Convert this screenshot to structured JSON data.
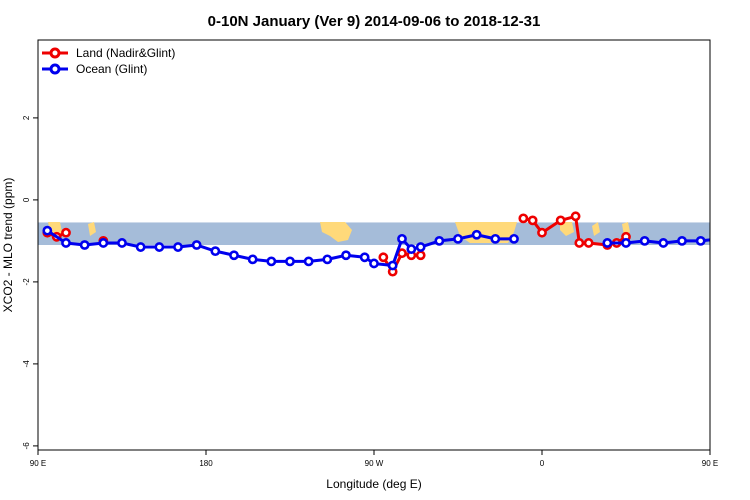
{
  "chart_data": {
    "type": "line",
    "title": "0-10N January (Ver 9)   2014-09-06 to 2018-12-31",
    "xlabel": "Longitude (deg E)",
    "ylabel": "XCO2 - MLO trend (ppm)",
    "xlim": [
      90,
      450
    ],
    "ylim": [
      -6.1,
      3.9
    ],
    "grid": false,
    "legend_position": "top-left",
    "x_ticks": [
      {
        "value": 90,
        "label": "90 E"
      },
      {
        "value": 180,
        "label": "180"
      },
      {
        "value": 270,
        "label": "90 W"
      },
      {
        "value": 360,
        "label": "0"
      },
      {
        "value": 450,
        "label": "90 E"
      },
      {
        "value": 540,
        "label": "180"
      }
    ],
    "y_ticks": [
      {
        "value": -6,
        "label": "-6"
      },
      {
        "value": -4,
        "label": "-4"
      },
      {
        "value": -2,
        "label": "-2"
      },
      {
        "value": 0,
        "label": "0"
      },
      {
        "value": 2,
        "label": "2"
      }
    ],
    "land_mask_band": {
      "y_range": [
        -1.1,
        -0.55
      ],
      "ocean_color": "#a5bcd9",
      "land_color": "#ffd97a"
    },
    "series": [
      {
        "name": "Land (Nadir&Glint)",
        "color": "#ee0000",
        "segments": [
          {
            "x": [
              95,
              100,
              105
            ],
            "y": [
              -0.8,
              -0.9,
              -0.8
            ]
          },
          {
            "x": [
              125
            ],
            "y": [
              -1.0
            ]
          },
          {
            "x": [
              275,
              280,
              285,
              290,
              295
            ],
            "y": [
              -1.4,
              -1.75,
              -1.3,
              -1.35,
              -1.35
            ]
          },
          {
            "x": [
              350,
              355,
              360,
              370,
              378,
              380,
              385,
              395,
              400,
              405
            ],
            "y": [
              -0.45,
              -0.5,
              -0.8,
              -0.5,
              -0.4,
              -1.05,
              -1.05,
              -1.1,
              -1.05,
              -0.9
            ]
          },
          {
            "x": [
              460,
              465,
              475,
              485
            ],
            "y": [
              -0.75,
              -0.65,
              -0.75,
              -0.8
            ]
          },
          {
            "x": [
              505
            ],
            "y": [
              -1.0
            ]
          }
        ]
      },
      {
        "name": "Ocean (Glint)",
        "color": "#0000ee",
        "segments": [
          {
            "x": [
              95,
              105,
              115,
              125,
              135,
              145,
              155,
              165,
              175,
              185,
              195,
              205,
              215,
              225,
              235,
              245,
              255,
              265,
              270,
              280,
              285,
              290,
              295,
              305,
              315,
              325,
              335,
              345
            ],
            "y": [
              -0.75,
              -1.05,
              -1.1,
              -1.05,
              -1.05,
              -1.15,
              -1.15,
              -1.15,
              -1.1,
              -1.25,
              -1.35,
              -1.45,
              -1.5,
              -1.5,
              -1.5,
              -1.45,
              -1.35,
              -1.4,
              -1.55,
              -1.6,
              -0.95,
              -1.2,
              -1.15,
              -1.0,
              -0.95,
              -0.85,
              -0.95,
              -0.95
            ]
          },
          {
            "x": [
              395,
              405,
              415,
              425,
              435,
              445,
              455,
              465,
              475,
              485,
              495,
              505,
              515,
              525,
              535,
              545,
              555,
              565
            ],
            "y": [
              -1.05,
              -1.05,
              -1.0,
              -1.05,
              -1.0,
              -1.0,
              -0.95,
              -0.75,
              -1.05,
              -1.1,
              -1.1,
              -1.05,
              -1.1,
              -1.1,
              -1.15,
              -1.15,
              -1.1,
              -1.1
            ]
          }
        ]
      }
    ]
  }
}
